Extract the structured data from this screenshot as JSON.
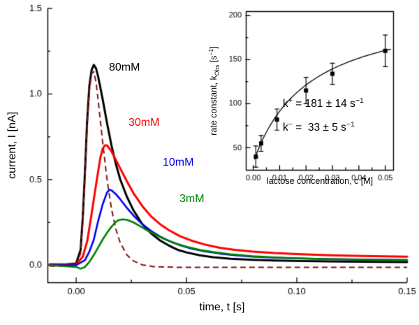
{
  "figure": {
    "background": "#ffffff",
    "axis_color": "#000000"
  },
  "chart_data": [
    {
      "id": "main-transients",
      "type": "line",
      "title": "",
      "xlabel": "time, t [s]",
      "ylabel": "current, I [nA]",
      "xlim": [
        -0.013,
        0.15
      ],
      "ylim": [
        -0.1,
        1.5
      ],
      "grid": false,
      "xticks": [
        {
          "v": 0.0,
          "label": "0.00"
        },
        {
          "v": 0.05,
          "label": "0.05"
        },
        {
          "v": 0.1,
          "label": "0.10"
        },
        {
          "v": 0.15,
          "label": "0.15"
        }
      ],
      "yticks": [
        {
          "v": 0.0,
          "label": "0.0"
        },
        {
          "v": 0.5,
          "label": "0.5"
        },
        {
          "v": 1.0,
          "label": "1.0"
        },
        {
          "v": 1.5,
          "label": "1.5"
        }
      ],
      "series": [
        {
          "name": "80mM",
          "color": "#000000",
          "style": "solid",
          "width": 3,
          "points": [
            [
              -0.012,
              0.005
            ],
            [
              -0.005,
              0.005
            ],
            [
              0.0,
              0.01
            ],
            [
              0.002,
              0.09
            ],
            [
              0.003,
              0.28
            ],
            [
              0.004,
              0.55
            ],
            [
              0.005,
              0.85
            ],
            [
              0.006,
              1.05
            ],
            [
              0.007,
              1.14
            ],
            [
              0.008,
              1.17
            ],
            [
              0.009,
              1.15
            ],
            [
              0.01,
              1.1
            ],
            [
              0.012,
              0.97
            ],
            [
              0.014,
              0.83
            ],
            [
              0.016,
              0.7
            ],
            [
              0.018,
              0.59
            ],
            [
              0.02,
              0.5
            ],
            [
              0.023,
              0.4
            ],
            [
              0.026,
              0.32
            ],
            [
              0.03,
              0.24
            ],
            [
              0.034,
              0.185
            ],
            [
              0.038,
              0.145
            ],
            [
              0.042,
              0.115
            ],
            [
              0.046,
              0.09
            ],
            [
              0.05,
              0.075
            ],
            [
              0.056,
              0.058
            ],
            [
              0.062,
              0.047
            ],
            [
              0.07,
              0.038
            ],
            [
              0.08,
              0.032
            ],
            [
              0.09,
              0.028
            ],
            [
              0.1,
              0.025
            ],
            [
              0.115,
              0.022
            ],
            [
              0.13,
              0.02
            ],
            [
              0.15,
              0.018
            ]
          ]
        },
        {
          "name": "dashed-fast-component",
          "color": "#801515",
          "style": "dashed",
          "width": 2,
          "points": [
            [
              -0.012,
              -0.005
            ],
            [
              0.0,
              -0.005
            ],
            [
              0.002,
              0.07
            ],
            [
              0.003,
              0.25
            ],
            [
              0.004,
              0.52
            ],
            [
              0.005,
              0.82
            ],
            [
              0.006,
              1.02
            ],
            [
              0.007,
              1.12
            ],
            [
              0.008,
              1.13
            ],
            [
              0.009,
              1.07
            ],
            [
              0.01,
              0.96
            ],
            [
              0.012,
              0.72
            ],
            [
              0.014,
              0.5
            ],
            [
              0.016,
              0.33
            ],
            [
              0.018,
              0.21
            ],
            [
              0.02,
              0.13
            ],
            [
              0.023,
              0.06
            ],
            [
              0.026,
              0.025
            ],
            [
              0.03,
              0.002
            ],
            [
              0.035,
              -0.008
            ],
            [
              0.045,
              -0.012
            ],
            [
              0.06,
              -0.012
            ],
            [
              0.09,
              -0.012
            ],
            [
              0.12,
              -0.012
            ],
            [
              0.15,
              -0.012
            ]
          ]
        },
        {
          "name": "30mM",
          "color": "#ff0000",
          "style": "solid",
          "width": 3,
          "points": [
            [
              -0.012,
              0.002
            ],
            [
              0.0,
              0.005
            ],
            [
              0.003,
              0.05
            ],
            [
              0.005,
              0.14
            ],
            [
              0.007,
              0.3
            ],
            [
              0.009,
              0.47
            ],
            [
              0.01,
              0.55
            ],
            [
              0.011,
              0.63
            ],
            [
              0.012,
              0.68
            ],
            [
              0.013,
              0.7
            ],
            [
              0.014,
              0.7
            ],
            [
              0.016,
              0.665
            ],
            [
              0.018,
              0.615
            ],
            [
              0.02,
              0.565
            ],
            [
              0.023,
              0.49
            ],
            [
              0.026,
              0.42
            ],
            [
              0.03,
              0.345
            ],
            [
              0.034,
              0.285
            ],
            [
              0.038,
              0.24
            ],
            [
              0.042,
              0.205
            ],
            [
              0.047,
              0.17
            ],
            [
              0.052,
              0.145
            ],
            [
              0.058,
              0.122
            ],
            [
              0.065,
              0.102
            ],
            [
              0.072,
              0.09
            ],
            [
              0.08,
              0.08
            ],
            [
              0.09,
              0.071
            ],
            [
              0.1,
              0.065
            ],
            [
              0.115,
              0.058
            ],
            [
              0.13,
              0.054
            ],
            [
              0.15,
              0.05
            ]
          ]
        },
        {
          "name": "10mM",
          "color": "#0000ee",
          "style": "solid",
          "width": 2.6,
          "points": [
            [
              -0.012,
              0.0
            ],
            [
              0.0,
              0.0
            ],
            [
              0.004,
              0.03
            ],
            [
              0.006,
              0.08
            ],
            [
              0.008,
              0.15
            ],
            [
              0.01,
              0.26
            ],
            [
              0.012,
              0.355
            ],
            [
              0.014,
              0.425
            ],
            [
              0.015,
              0.44
            ],
            [
              0.016,
              0.438
            ],
            [
              0.018,
              0.415
            ],
            [
              0.02,
              0.385
            ],
            [
              0.023,
              0.335
            ],
            [
              0.026,
              0.29
            ],
            [
              0.03,
              0.24
            ],
            [
              0.034,
              0.2
            ],
            [
              0.038,
              0.168
            ],
            [
              0.042,
              0.142
            ],
            [
              0.047,
              0.117
            ],
            [
              0.052,
              0.098
            ],
            [
              0.058,
              0.082
            ],
            [
              0.065,
              0.068
            ],
            [
              0.072,
              0.058
            ],
            [
              0.08,
              0.05
            ],
            [
              0.09,
              0.044
            ],
            [
              0.1,
              0.04
            ],
            [
              0.115,
              0.036
            ],
            [
              0.13,
              0.033
            ],
            [
              0.15,
              0.03
            ]
          ]
        },
        {
          "name": "3mM",
          "color": "#008000",
          "style": "solid",
          "width": 2.6,
          "points": [
            [
              -0.012,
              0.0
            ],
            [
              0.0,
              -0.01
            ],
            [
              0.002,
              -0.02
            ],
            [
              0.004,
              -0.01
            ],
            [
              0.006,
              0.02
            ],
            [
              0.008,
              0.06
            ],
            [
              0.01,
              0.105
            ],
            [
              0.012,
              0.15
            ],
            [
              0.014,
              0.19
            ],
            [
              0.016,
              0.225
            ],
            [
              0.018,
              0.253
            ],
            [
              0.019,
              0.262
            ],
            [
              0.021,
              0.268
            ],
            [
              0.023,
              0.265
            ],
            [
              0.026,
              0.25
            ],
            [
              0.029,
              0.228
            ],
            [
              0.032,
              0.205
            ],
            [
              0.036,
              0.178
            ],
            [
              0.04,
              0.153
            ],
            [
              0.045,
              0.128
            ],
            [
              0.05,
              0.108
            ],
            [
              0.056,
              0.09
            ],
            [
              0.062,
              0.077
            ],
            [
              0.07,
              0.064
            ],
            [
              0.08,
              0.053
            ],
            [
              0.09,
              0.046
            ],
            [
              0.1,
              0.041
            ],
            [
              0.115,
              0.036
            ],
            [
              0.13,
              0.032
            ],
            [
              0.15,
              0.03
            ]
          ]
        }
      ],
      "series_labels": [
        {
          "text": "80mM",
          "color": "#000000"
        },
        {
          "text": "30mM",
          "color": "#ff0000"
        },
        {
          "text": "10mM",
          "color": "#0000ee"
        },
        {
          "text": "3mM",
          "color": "#008000"
        }
      ]
    },
    {
      "id": "inset-rate-constants",
      "type": "scatter",
      "xlabel": "lactose concentration, c [M]",
      "ylabel": "rate constant, k_Obs [s^-1]",
      "ylabel_parts": {
        "pre": "rate constant, k",
        "sub": "Obs",
        "mid": " [s",
        "sup": "−1",
        "post": "]"
      },
      "xlim": [
        -0.0028,
        0.053
      ],
      "ylim": [
        25,
        205
      ],
      "xticks": [
        {
          "v": 0.0,
          "label": "0.00"
        },
        {
          "v": 0.01,
          "label": "0.01"
        },
        {
          "v": 0.02,
          "label": "0.02"
        },
        {
          "v": 0.03,
          "label": "0.03"
        },
        {
          "v": 0.04,
          "label": "0.04"
        },
        {
          "v": 0.05,
          "label": "0.05"
        }
      ],
      "yticks": [
        {
          "v": 50,
          "label": "50"
        },
        {
          "v": 100,
          "label": "100"
        },
        {
          "v": 150,
          "label": "150"
        },
        {
          "v": 200,
          "label": "200"
        }
      ],
      "points": [
        {
          "c": 0.001,
          "k": 40,
          "err": 12
        },
        {
          "c": 0.003,
          "k": 55,
          "err": 9
        },
        {
          "c": 0.009,
          "k": 82,
          "err": 12
        },
        {
          "c": 0.02,
          "k": 115,
          "err": 15
        },
        {
          "c": 0.03,
          "k": 134,
          "err": 12
        },
        {
          "c": 0.05,
          "k": 160,
          "err": 18
        }
      ],
      "fit": {
        "k_plus": 181,
        "k_plus_err": 14,
        "k_minus": 33,
        "k_minus_err": 5,
        "K": 0.021,
        "c_range": [
          0.0005,
          0.052
        ]
      },
      "annotations": [
        {
          "k": "k",
          "sup": "+",
          "rest": " = 181 ± 14 s",
          "sup2": "−1"
        },
        {
          "k": "k",
          "sup": "−",
          "rest": " =  33 ± 5 s",
          "sup2": "−1"
        }
      ]
    }
  ]
}
